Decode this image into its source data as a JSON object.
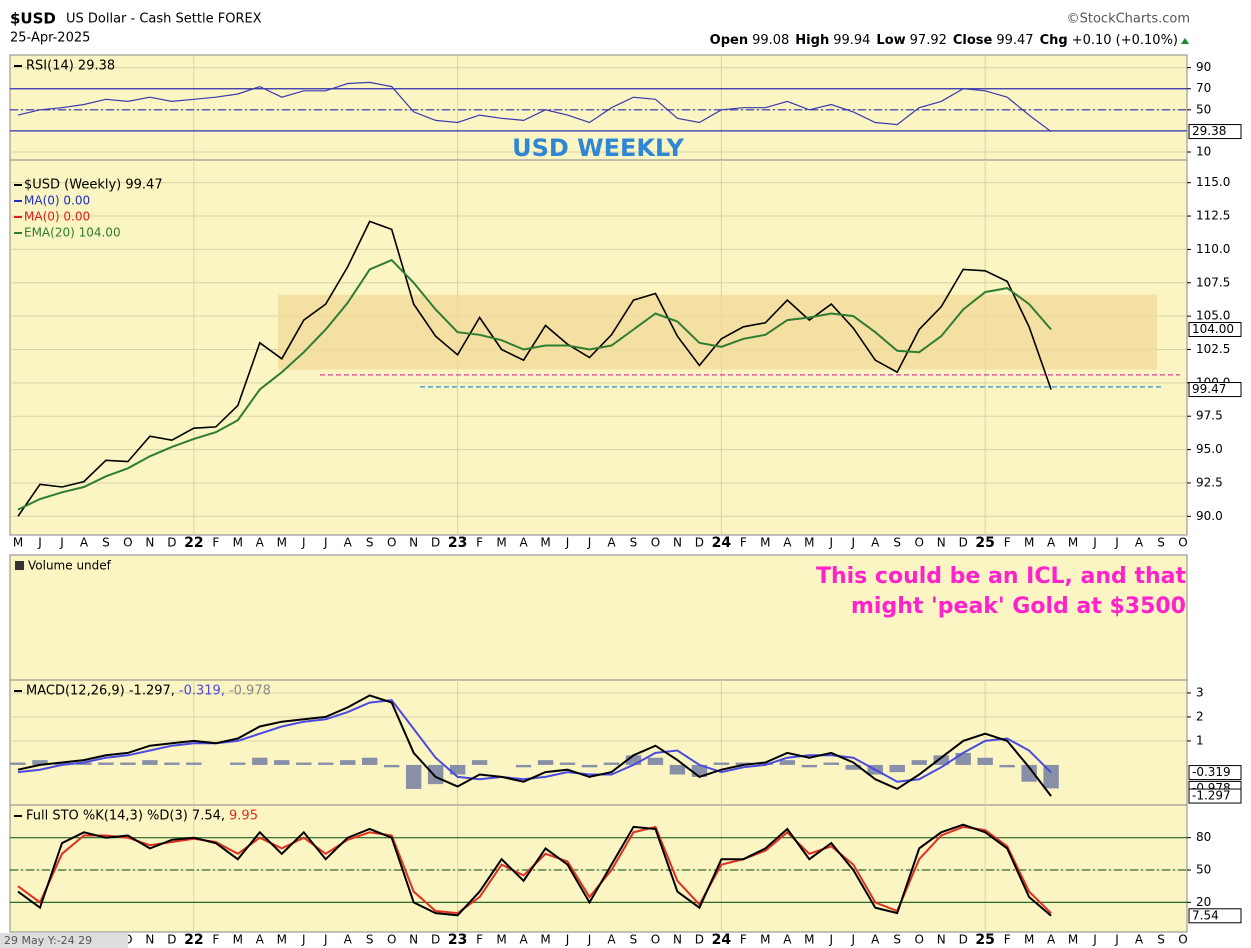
{
  "header": {
    "symbol": "$USD",
    "name": "US Dollar - Cash Settle FOREX",
    "date": "25-Apr-2025",
    "source": "©StockCharts.com",
    "quote": [
      {
        "label": "Open",
        "value": "99.08"
      },
      {
        "label": "High",
        "value": "99.94"
      },
      {
        "label": "Low",
        "value": "97.92"
      },
      {
        "label": "Close",
        "value": "99.47"
      },
      {
        "label": "Chg",
        "value": "+0.10 (+0.10%)"
      }
    ]
  },
  "title": "USD WEEKLY",
  "volume_panel": {
    "label": "Volume undef",
    "annotation": [
      "This could be an ICL, and that",
      "might 'peak' Gold at $3500"
    ]
  },
  "cursor_label": "29 May Y:-24 29",
  "chart_data": [
    {
      "type": "line",
      "legend": [
        "RSI(14) 29.38"
      ],
      "ylim": [
        2.4,
        102
      ],
      "yticks": [
        90,
        70,
        50,
        10
      ],
      "hlines": [
        {
          "value": 70,
          "style": "solid"
        },
        {
          "value": 50,
          "style": "dash"
        },
        {
          "value": 30,
          "style": "solid"
        }
      ],
      "series": [
        {
          "name": "RSI(14)",
          "color": "#3a3ab0",
          "last_label": "29.38",
          "values": [
            45,
            50,
            52,
            55,
            60,
            58,
            62,
            58,
            60,
            62,
            65,
            72,
            62,
            68,
            68,
            75,
            76,
            72,
            48,
            40,
            38,
            45,
            42,
            40,
            50,
            45,
            38,
            52,
            62,
            60,
            42,
            38,
            50,
            52,
            52,
            58,
            50,
            55,
            48,
            38,
            36,
            52,
            58,
            70,
            68,
            62,
            45,
            29.38,
            null,
            null,
            null,
            null,
            null,
            null
          ]
        }
      ]
    },
    {
      "type": "line",
      "legend": [
        "$USD (Weekly) 99.47",
        "MA(0) 0.00",
        "MA(0) 0.00",
        "EMA(20) 104.00"
      ],
      "legend_colors": [
        "#000000",
        "#2030c0",
        "#e02020",
        "#2e7d32"
      ],
      "categories": [
        "M",
        "J",
        "J",
        "A",
        "S",
        "O",
        "N",
        "D",
        "22",
        "F",
        "M",
        "A",
        "M",
        "J",
        "J",
        "A",
        "S",
        "O",
        "N",
        "D",
        "23",
        "F",
        "M",
        "A",
        "M",
        "J",
        "J",
        "A",
        "S",
        "O",
        "N",
        "D",
        "24",
        "F",
        "M",
        "A",
        "M",
        "J",
        "J",
        "A",
        "S",
        "O",
        "N",
        "D",
        "25",
        "F",
        "M",
        "A",
        "M",
        "J",
        "J",
        "A",
        "S",
        "O"
      ],
      "ylim": [
        88.6,
        116.7
      ],
      "yticks": [
        {
          "value": 90,
          "label": "90.0"
        },
        {
          "value": 92.5,
          "label": "92.5"
        },
        {
          "value": 95,
          "label": "95.0"
        },
        {
          "value": 97.5,
          "label": "97.5"
        },
        {
          "value": 100,
          "label": "100.0"
        },
        {
          "value": 102.5,
          "label": "102.5"
        },
        {
          "value": 105,
          "label": "105.0"
        },
        {
          "value": 107.5,
          "label": "107.5"
        },
        {
          "value": 110,
          "label": "110.0"
        },
        {
          "value": 112.5,
          "label": "112.5"
        },
        {
          "value": 115,
          "label": "115.0"
        }
      ],
      "zone": {
        "range": [
          101,
          106.6
        ],
        "color": "#f3d89a"
      },
      "levels": [
        {
          "value": 100.6,
          "color": "#e040a0"
        },
        {
          "value": 99.7,
          "color": "#3090d0"
        }
      ],
      "series": [
        {
          "name": "$USD",
          "color": "#000000",
          "last_label": "99.47",
          "values": [
            90.0,
            92.4,
            92.2,
            92.6,
            94.2,
            94.1,
            96.0,
            95.7,
            96.6,
            96.7,
            98.3,
            103.0,
            101.8,
            104.7,
            105.9,
            108.7,
            112.1,
            111.5,
            105.9,
            103.5,
            102.1,
            104.9,
            102.5,
            101.7,
            104.3,
            102.9,
            101.9,
            103.6,
            106.2,
            106.7,
            103.5,
            101.3,
            103.3,
            104.2,
            104.5,
            106.2,
            104.7,
            105.9,
            104.1,
            101.7,
            100.8,
            104.0,
            105.7,
            108.5,
            108.4,
            107.6,
            104.2,
            99.5,
            null,
            null,
            null,
            null,
            null,
            null
          ]
        },
        {
          "name": "EMA(20)",
          "color": "#2e7d32",
          "last_label": "104.00",
          "values": [
            90.5,
            91.3,
            91.8,
            92.2,
            93.0,
            93.6,
            94.5,
            95.2,
            95.8,
            96.3,
            97.2,
            99.5,
            100.8,
            102.3,
            104.0,
            106.0,
            108.5,
            109.2,
            107.5,
            105.5,
            103.8,
            103.6,
            103.2,
            102.5,
            102.8,
            102.8,
            102.5,
            102.8,
            104.0,
            105.2,
            104.6,
            103.0,
            102.7,
            103.3,
            103.6,
            104.7,
            104.9,
            105.2,
            105.0,
            103.8,
            102.4,
            102.3,
            103.5,
            105.5,
            106.8,
            107.1,
            105.9,
            104.0,
            null,
            null,
            null,
            null,
            null,
            null
          ]
        }
      ]
    },
    {
      "type": "line",
      "legend": [
        "MACD(12,26,9) -1.297,",
        "-0.319,",
        "-0.978"
      ],
      "legend_colors": [
        "#000000",
        "#4a4ae0",
        "#888888"
      ],
      "ylim": [
        -1.67,
        3.54
      ],
      "yticks": [
        3,
        2,
        1
      ],
      "series": [
        {
          "name": "Histogram",
          "kind": "bar",
          "color": "#8890a8",
          "last_label": "-0.978",
          "values": [
            0.1,
            0.2,
            0.1,
            0.1,
            0.1,
            0.1,
            0.2,
            0.1,
            0.1,
            0.0,
            0.1,
            0.3,
            0.2,
            0.1,
            0.1,
            0.2,
            0.3,
            -0.1,
            -1.0,
            -0.8,
            -0.4,
            0.2,
            0.0,
            -0.1,
            0.2,
            0.1,
            -0.1,
            0.1,
            0.4,
            0.3,
            -0.4,
            -0.5,
            0.1,
            0.1,
            0.1,
            0.2,
            -0.1,
            0.1,
            -0.2,
            -0.4,
            -0.3,
            0.2,
            0.4,
            0.5,
            0.3,
            -0.1,
            -0.7,
            -0.978,
            null,
            null,
            null,
            null,
            null,
            null
          ]
        },
        {
          "name": "Signal",
          "color": "#4a4ae0",
          "last_label": "-0.319",
          "values": [
            -0.3,
            -0.2,
            0.0,
            0.1,
            0.3,
            0.4,
            0.6,
            0.8,
            0.9,
            0.9,
            1.0,
            1.3,
            1.6,
            1.8,
            1.9,
            2.2,
            2.6,
            2.7,
            1.5,
            0.3,
            -0.5,
            -0.6,
            -0.5,
            -0.6,
            -0.5,
            -0.3,
            -0.4,
            -0.4,
            0.0,
            0.5,
            0.6,
            0.0,
            -0.3,
            -0.1,
            0.0,
            0.3,
            0.4,
            0.4,
            0.3,
            -0.2,
            -0.7,
            -0.6,
            -0.1,
            0.5,
            1.0,
            1.1,
            0.6,
            -0.319,
            null,
            null,
            null,
            null,
            null,
            null
          ]
        },
        {
          "name": "MACD",
          "color": "#000000",
          "last_label": "-1.297",
          "values": [
            -0.2,
            0.0,
            0.1,
            0.2,
            0.4,
            0.5,
            0.8,
            0.9,
            1.0,
            0.9,
            1.1,
            1.6,
            1.8,
            1.9,
            2.0,
            2.4,
            2.9,
            2.6,
            0.5,
            -0.5,
            -0.9,
            -0.4,
            -0.5,
            -0.7,
            -0.3,
            -0.2,
            -0.5,
            -0.3,
            0.4,
            0.8,
            0.2,
            -0.5,
            -0.2,
            0.0,
            0.1,
            0.5,
            0.3,
            0.5,
            0.1,
            -0.6,
            -1.0,
            -0.4,
            0.3,
            1.0,
            1.3,
            1.0,
            -0.1,
            -1.297,
            null,
            null,
            null,
            null,
            null,
            null
          ]
        }
      ]
    },
    {
      "type": "line",
      "legend": [
        "Full STO %K(14,3) %D(3) 7.54,",
        "9.95"
      ],
      "legend_colors": [
        "#000000",
        "#e03020"
      ],
      "ylim": [
        -7.5,
        110.3
      ],
      "yticks": [
        80,
        50,
        20
      ],
      "hlines": [
        {
          "value": 80,
          "style": "solid"
        },
        {
          "value": 50,
          "style": "dash"
        },
        {
          "value": 20,
          "style": "solid"
        }
      ],
      "series": [
        {
          "name": "%D",
          "color": "#e03020",
          "values": [
            35,
            20,
            65,
            82,
            82,
            80,
            73,
            76,
            79,
            76,
            65,
            80,
            70,
            80,
            65,
            78,
            85,
            82,
            30,
            12,
            10,
            25,
            55,
            45,
            65,
            58,
            25,
            50,
            85,
            90,
            40,
            18,
            55,
            60,
            68,
            85,
            65,
            72,
            55,
            20,
            12,
            60,
            82,
            90,
            87,
            72,
            30,
            9.95,
            null,
            null,
            null,
            null,
            null,
            null
          ]
        },
        {
          "name": "%K",
          "color": "#000000",
          "last_label": "7.54",
          "values": [
            30,
            15,
            75,
            85,
            80,
            82,
            70,
            78,
            80,
            75,
            60,
            85,
            65,
            85,
            60,
            80,
            88,
            80,
            20,
            10,
            8,
            30,
            60,
            40,
            70,
            55,
            20,
            55,
            90,
            88,
            30,
            15,
            60,
            60,
            70,
            88,
            60,
            75,
            50,
            15,
            10,
            70,
            85,
            92,
            85,
            70,
            25,
            7.54,
            null,
            null,
            null,
            null,
            null,
            null
          ]
        }
      ]
    }
  ]
}
